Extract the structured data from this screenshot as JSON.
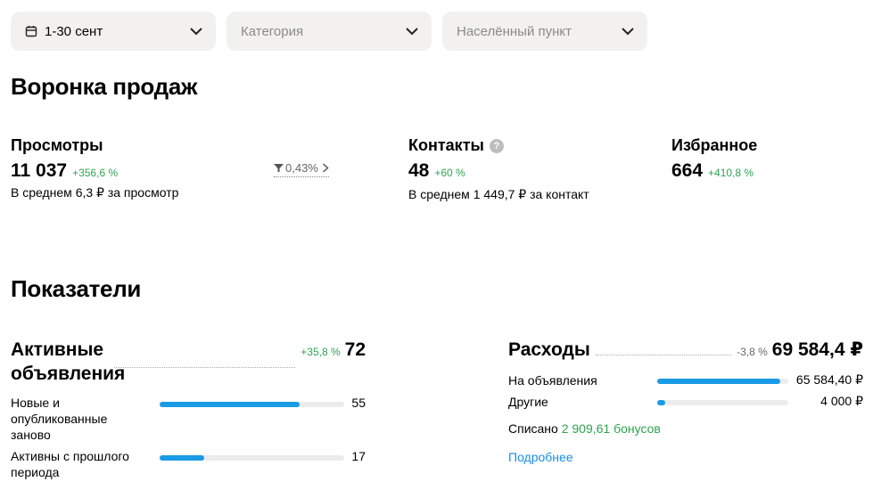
{
  "filters": {
    "period": {
      "value": "1-30 сент",
      "icon": "calendar-icon"
    },
    "category": {
      "placeholder": "Категория"
    },
    "locality": {
      "placeholder": "Населённый пункт"
    }
  },
  "funnel": {
    "title": "Воронка продаж",
    "views": {
      "title": "Просмотры",
      "value": "11 037",
      "delta": "+356,6 %",
      "sub": "В среднем 6,3 ₽ за просмотр"
    },
    "conversion": {
      "value": "0,43%"
    },
    "contacts": {
      "title": "Контакты",
      "value": "48",
      "delta": "+60 %",
      "sub": "В среднем 1 449,7 ₽ за контакт"
    },
    "favorites": {
      "title": "Избранное",
      "value": "664",
      "delta": "+410,8 %"
    }
  },
  "indicators": {
    "title": "Показатели",
    "active": {
      "title": "Активные объявления",
      "delta": "+35,8 %",
      "value": "72",
      "rows": [
        {
          "label": "Новые и опубликованные заново",
          "value": "55",
          "fraction": 0.76
        },
        {
          "label": "Активны с прошлого периода",
          "value": "17",
          "fraction": 0.24
        }
      ]
    },
    "expenses": {
      "title": "Расходы",
      "delta": "-3,8 %",
      "value": "69 584,4 ₽",
      "rows": [
        {
          "label": "На объявления",
          "value": "65 584,40 ₽",
          "fraction": 0.94
        },
        {
          "label": "Другие",
          "value": "4 000 ₽",
          "fraction": 0.06
        }
      ],
      "spent_label": "Списано",
      "spent_bonus": "2 909,61 бонусов",
      "more": "Подробнее"
    }
  },
  "colors": {
    "accent": "#1a9be5",
    "positive": "#2ea44f",
    "link": "#1a8ee6",
    "filter_bg": "#f2f1f0"
  }
}
